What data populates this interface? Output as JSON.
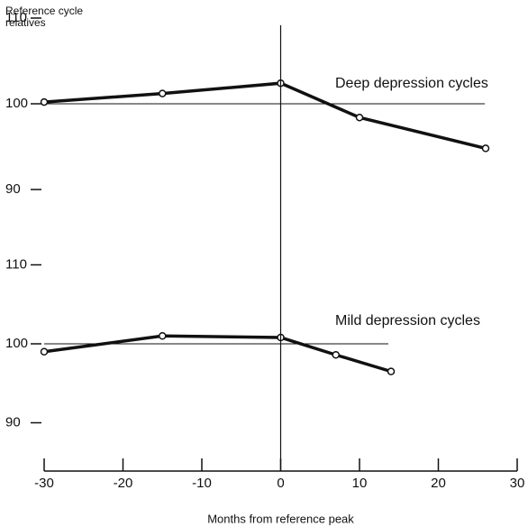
{
  "chart_data": [
    {
      "type": "line",
      "title": "Deep depression cycles",
      "ylabel": "Reference cycle relatives",
      "x": [
        -30,
        -15,
        0,
        10,
        26
      ],
      "values": [
        100.2,
        101.2,
        102.4,
        98.4,
        94.8
      ],
      "xlim": [
        -30,
        30
      ],
      "ylim": [
        90,
        110
      ],
      "yticks": [
        90,
        100,
        110
      ],
      "hline": 100,
      "color": "#111111"
    },
    {
      "type": "line",
      "title": "Mild depression cycles",
      "xlabel": "Months from reference peak",
      "x": [
        -30,
        -15,
        0,
        7,
        14
      ],
      "values": [
        99.0,
        101.0,
        100.8,
        98.6,
        96.5
      ],
      "xlim": [
        -30,
        30
      ],
      "ylim": [
        90,
        110
      ],
      "yticks": [
        90,
        100,
        110
      ],
      "xticks": [
        -30,
        -20,
        -10,
        0,
        10,
        20,
        30
      ],
      "hline": 100,
      "color": "#111111"
    }
  ]
}
